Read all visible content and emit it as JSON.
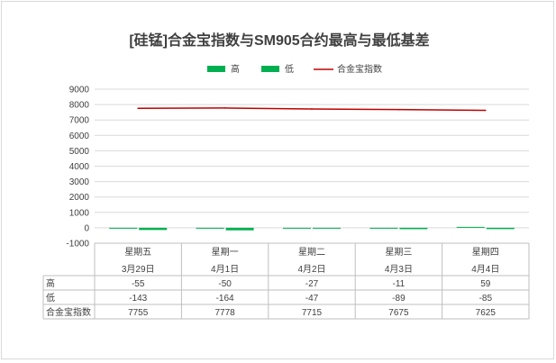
{
  "chart_data": {
    "type": "bar+line",
    "title": "[硅锰]合金宝指数与SM905合约最高与最低基差",
    "categories": [
      {
        "weekday": "星期五",
        "date": "3月29日"
      },
      {
        "weekday": "星期一",
        "date": "4月1日"
      },
      {
        "weekday": "星期二",
        "date": "4月2日"
      },
      {
        "weekday": "星期三",
        "date": "4月3日"
      },
      {
        "weekday": "星期四",
        "date": "4月4日"
      }
    ],
    "series": [
      {
        "name": "高",
        "type": "bar",
        "color": "#00b050",
        "values": [
          -55,
          -50,
          -27,
          -11,
          59
        ]
      },
      {
        "name": "低",
        "type": "bar",
        "color": "#00b050",
        "values": [
          -143,
          -164,
          -47,
          -89,
          -85
        ]
      },
      {
        "name": "合金宝指数",
        "type": "line",
        "color": "#c00000",
        "values": [
          7755,
          7778,
          7715,
          7675,
          7625
        ]
      }
    ],
    "table_values": {
      "high": [
        "-55",
        "-50",
        "-27",
        "-11",
        "59"
      ],
      "low": [
        "-143",
        "-164",
        "-47",
        "-89",
        "-85"
      ],
      "index": [
        "7755",
        "7778",
        "7715",
        "7675",
        "7625"
      ]
    },
    "yticks": [
      "9000",
      "8000",
      "7000",
      "6000",
      "5000",
      "4000",
      "3000",
      "2000",
      "1000",
      "0",
      "-1000"
    ],
    "ylim": [
      -1000,
      9000
    ],
    "grid": true,
    "legend_position": "top-center"
  }
}
